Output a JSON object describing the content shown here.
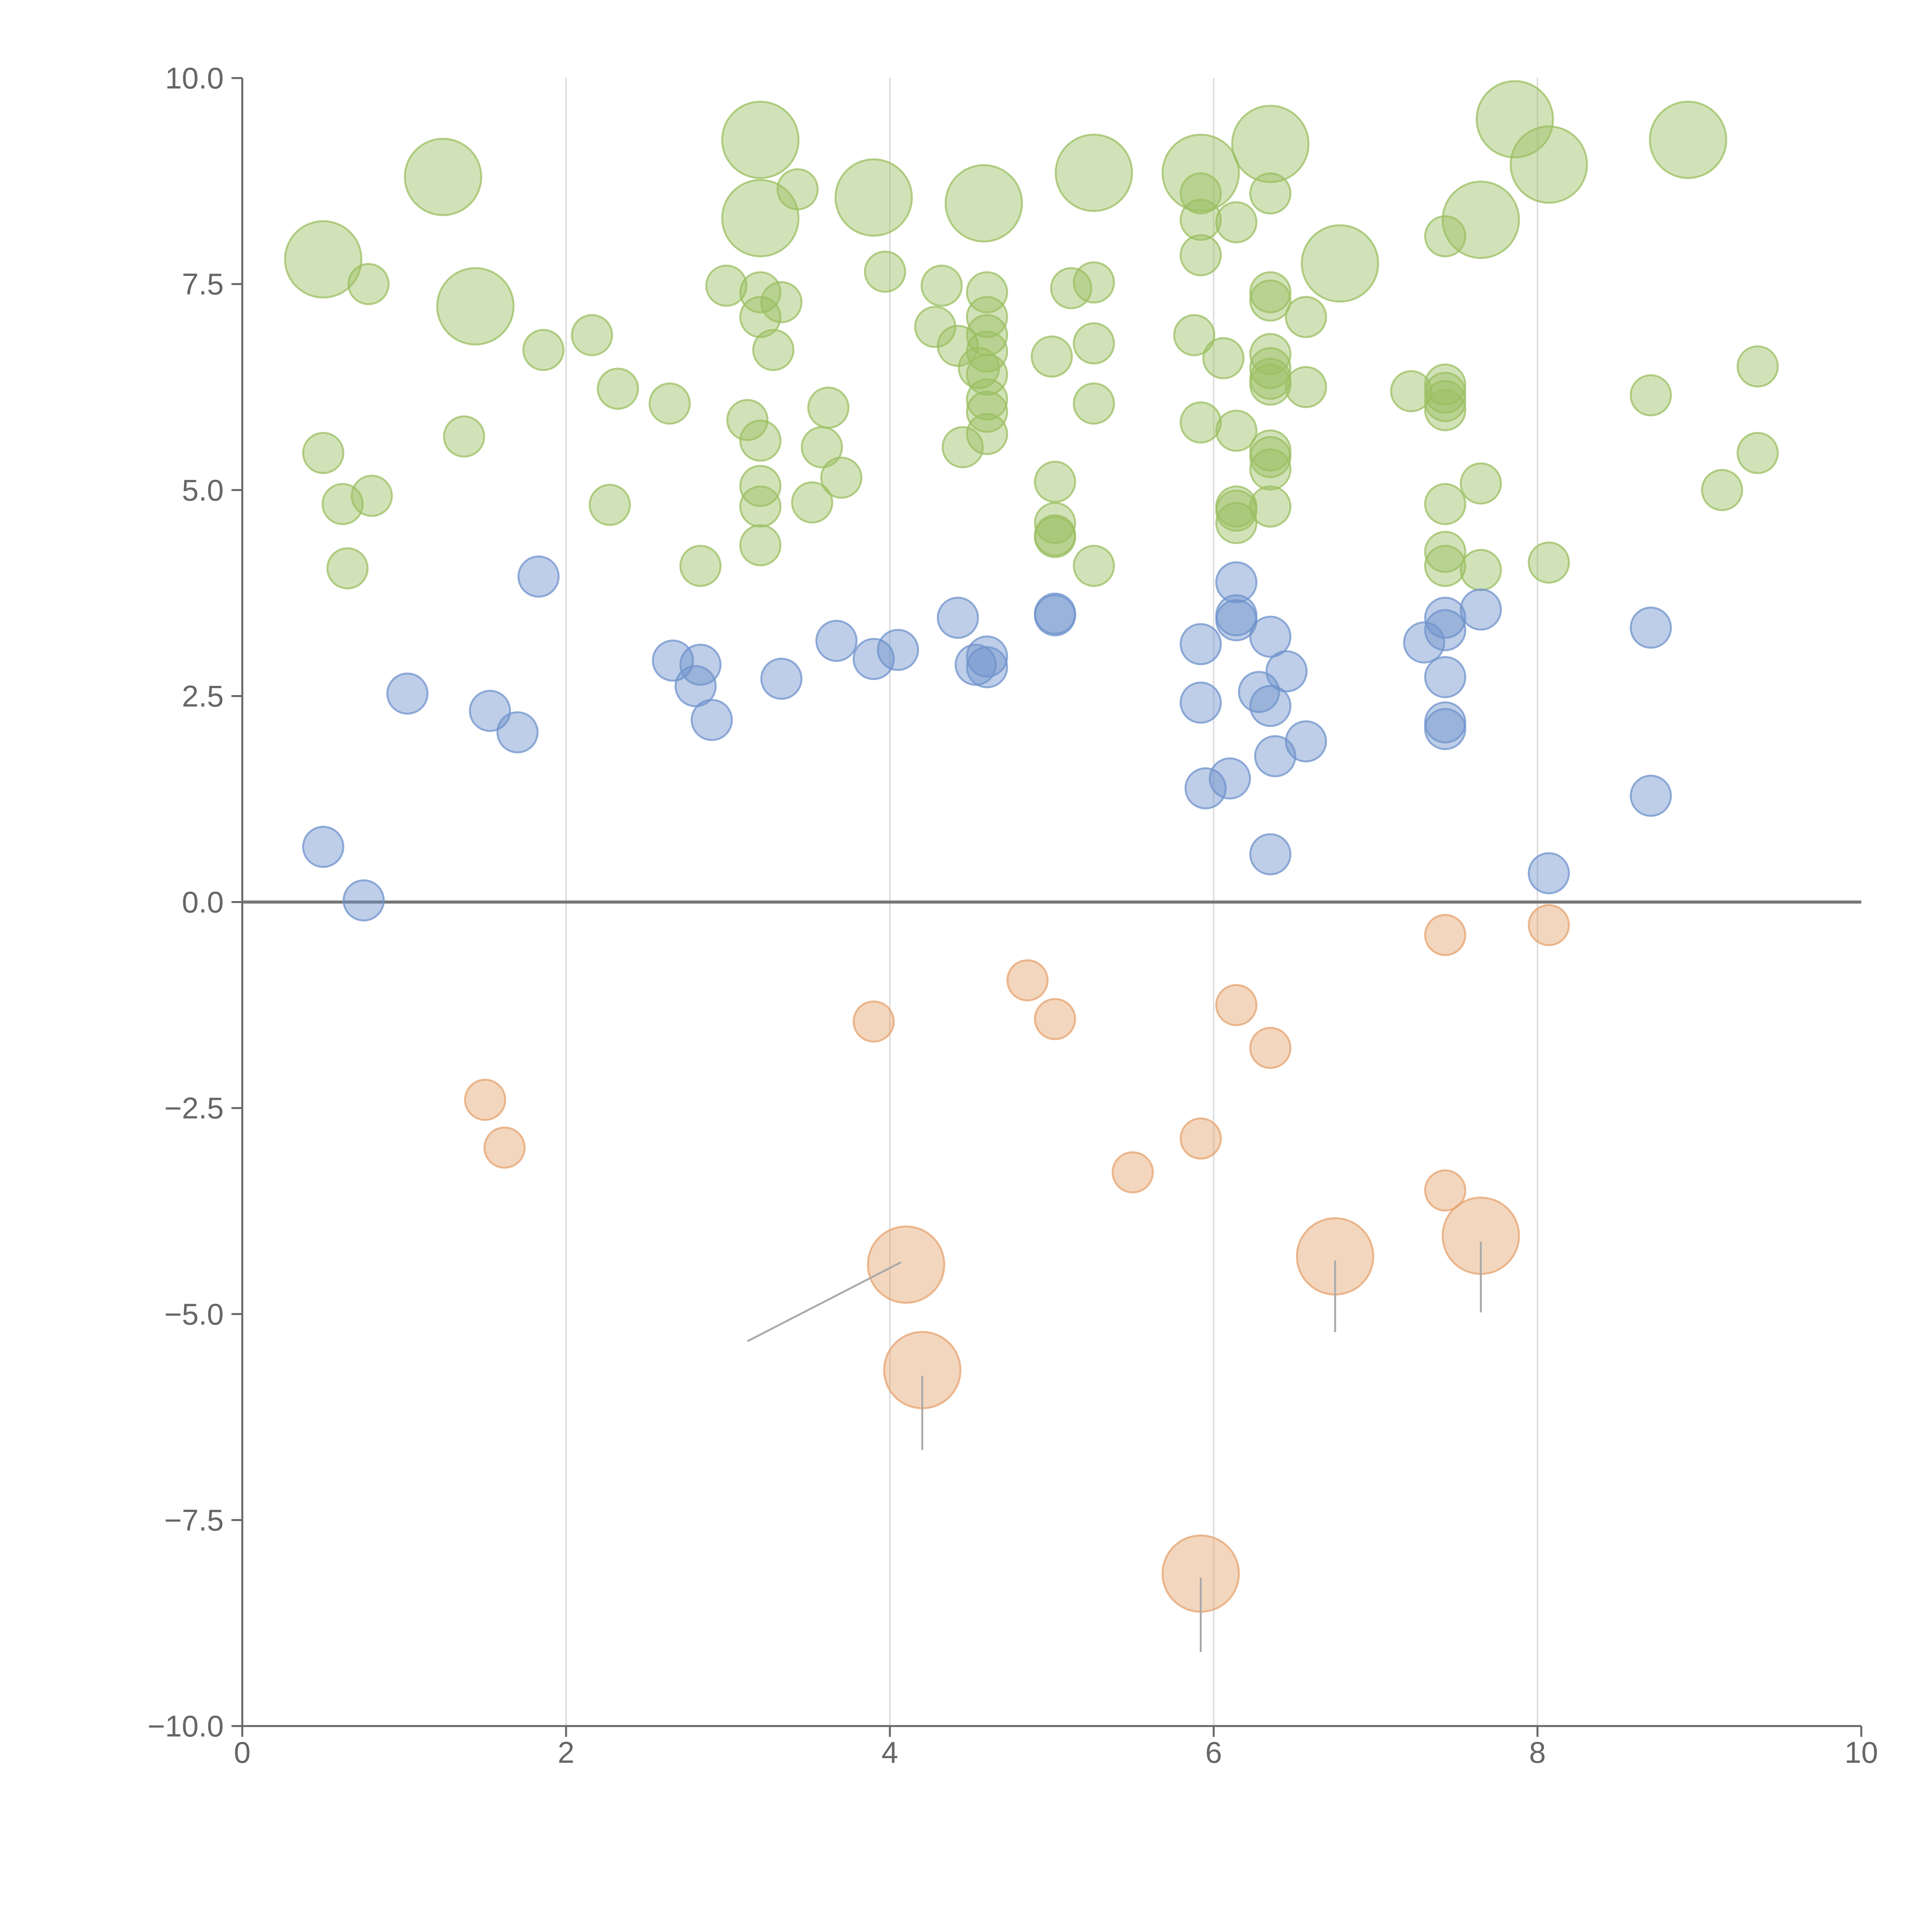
{
  "chart_data": {
    "type": "scatter",
    "title": "",
    "xlabel": "",
    "ylabel": "",
    "xlim": [
      0,
      10
    ],
    "ylim": [
      -10,
      10
    ],
    "x_ticks": [
      0,
      2,
      4,
      6,
      8,
      10
    ],
    "x_tick_labels": [
      "0",
      "2",
      "4",
      "6",
      "8",
      "10"
    ],
    "y_ticks": [
      10,
      7.5,
      5,
      2.5,
      0,
      -2.5,
      -5,
      -7.5,
      -10
    ],
    "y_tick_labels": [
      "10.0",
      "7.5",
      "5.0",
      "2.5",
      "0.0",
      "−2.5",
      "−5.0",
      "−7.5",
      "−10.0"
    ],
    "vertical_gridlines_at": [
      2,
      4,
      6,
      8
    ],
    "zero_line": 0,
    "colors": {
      "green": "#9bbf62",
      "blue": "#6f93cc",
      "orange": "#e5a36f",
      "axis": "#666666",
      "grid": "#dddddd",
      "zero_line": "#777777",
      "leader": "#aaaaaa"
    },
    "series": [
      {
        "name": "green",
        "color": "#9bbf62",
        "size_units": "relative radius (1 = small bubble)",
        "points": [
          [
            0.5,
            7.8,
            1.9
          ],
          [
            0.78,
            7.5,
            1
          ],
          [
            0.5,
            5.45,
            1
          ],
          [
            0.62,
            4.83,
            1
          ],
          [
            0.8,
            4.93,
            1
          ],
          [
            0.65,
            4.05,
            1
          ],
          [
            1.24,
            8.8,
            1.9
          ],
          [
            1.44,
            7.23,
            1.9
          ],
          [
            1.37,
            5.65,
            1
          ],
          [
            1.86,
            6.7,
            1
          ],
          [
            2.16,
            6.88,
            1
          ],
          [
            2.32,
            6.23,
            1
          ],
          [
            2.27,
            4.82,
            1
          ],
          [
            2.64,
            6.05,
            1
          ],
          [
            2.83,
            4.08,
            1
          ],
          [
            2.99,
            7.48,
            1
          ],
          [
            3.12,
            5.85,
            1
          ],
          [
            3.2,
            9.25,
            1.9
          ],
          [
            3.2,
            8.3,
            1.9
          ],
          [
            3.2,
            7.4,
            1
          ],
          [
            3.2,
            7.1,
            1
          ],
          [
            3.2,
            5.6,
            1
          ],
          [
            3.2,
            5.05,
            1
          ],
          [
            3.2,
            4.8,
            1
          ],
          [
            3.2,
            4.33,
            1
          ],
          [
            3.33,
            7.28,
            1
          ],
          [
            3.28,
            6.7,
            1
          ],
          [
            3.43,
            8.65,
            1
          ],
          [
            3.52,
            4.85,
            1
          ],
          [
            3.58,
            5.52,
            1
          ],
          [
            3.62,
            6.0,
            1
          ],
          [
            3.7,
            5.15,
            1
          ],
          [
            3.9,
            8.55,
            1.9
          ],
          [
            3.97,
            7.65,
            1
          ],
          [
            4.32,
            7.48,
            1
          ],
          [
            4.28,
            6.98,
            1
          ],
          [
            4.42,
            6.75,
            1
          ],
          [
            4.45,
            5.52,
            1
          ],
          [
            4.55,
            6.48,
            1
          ],
          [
            4.58,
            8.48,
            1.9
          ],
          [
            4.6,
            7.4,
            1
          ],
          [
            4.6,
            7.1,
            1
          ],
          [
            4.6,
            6.88,
            1
          ],
          [
            4.6,
            6.68,
            1
          ],
          [
            4.6,
            6.4,
            1
          ],
          [
            4.6,
            6.1,
            1
          ],
          [
            4.6,
            5.95,
            1
          ],
          [
            4.6,
            5.68,
            1
          ],
          [
            5.0,
            6.62,
            1
          ],
          [
            5.02,
            5.1,
            1
          ],
          [
            5.02,
            4.6,
            1
          ],
          [
            5.02,
            4.45,
            1
          ],
          [
            5.02,
            4.43,
            1
          ],
          [
            5.12,
            7.45,
            1
          ],
          [
            5.26,
            7.52,
            1
          ],
          [
            5.26,
            6.78,
            1
          ],
          [
            5.26,
            6.05,
            1
          ],
          [
            5.26,
            4.08,
            1
          ],
          [
            5.26,
            8.85,
            1.9
          ],
          [
            5.88,
            6.88,
            1
          ],
          [
            5.92,
            8.85,
            1.9
          ],
          [
            5.92,
            8.6,
            1
          ],
          [
            5.92,
            8.28,
            1
          ],
          [
            5.92,
            7.85,
            1
          ],
          [
            5.92,
            5.82,
            1
          ],
          [
            6.06,
            6.6,
            1
          ],
          [
            6.14,
            8.25,
            1
          ],
          [
            6.14,
            5.72,
            1
          ],
          [
            6.14,
            4.8,
            1
          ],
          [
            6.14,
            4.75,
            1
          ],
          [
            6.14,
            4.6,
            1
          ],
          [
            6.35,
            9.2,
            1.9
          ],
          [
            6.35,
            8.6,
            1
          ],
          [
            6.35,
            7.4,
            1
          ],
          [
            6.35,
            7.3,
            1
          ],
          [
            6.35,
            6.65,
            1
          ],
          [
            6.35,
            6.48,
            1
          ],
          [
            6.35,
            6.35,
            1
          ],
          [
            6.35,
            6.28,
            1
          ],
          [
            6.35,
            5.48,
            1
          ],
          [
            6.35,
            5.4,
            1
          ],
          [
            6.35,
            5.25,
            1
          ],
          [
            6.35,
            4.8,
            1
          ],
          [
            6.57,
            7.1,
            1
          ],
          [
            6.57,
            6.25,
            1
          ],
          [
            6.78,
            7.75,
            1.9
          ],
          [
            7.22,
            6.2,
            1
          ],
          [
            7.43,
            8.08,
            1
          ],
          [
            7.43,
            6.28,
            1
          ],
          [
            7.43,
            6.18,
            1
          ],
          [
            7.43,
            6.08,
            1
          ],
          [
            7.43,
            5.97,
            1
          ],
          [
            7.43,
            4.83,
            1
          ],
          [
            7.43,
            4.25,
            1
          ],
          [
            7.43,
            4.08,
            1
          ],
          [
            7.65,
            8.28,
            1.9
          ],
          [
            7.65,
            5.08,
            1
          ],
          [
            7.65,
            4.03,
            1
          ],
          [
            7.86,
            9.5,
            1.9
          ],
          [
            8.07,
            8.95,
            1.9
          ],
          [
            8.07,
            4.12,
            1
          ],
          [
            8.7,
            6.15,
            1
          ],
          [
            8.93,
            9.25,
            1.9
          ],
          [
            9.14,
            5.0,
            1
          ],
          [
            9.36,
            6.5,
            1
          ],
          [
            9.36,
            5.45,
            1
          ]
        ]
      },
      {
        "name": "blue",
        "color": "#6f93cc",
        "size_units": "relative radius (1 = small bubble)",
        "points": [
          [
            0.5,
            0.67,
            1
          ],
          [
            0.75,
            0.02,
            1
          ],
          [
            1.02,
            2.53,
            1
          ],
          [
            1.53,
            2.32,
            1
          ],
          [
            1.7,
            2.06,
            1
          ],
          [
            1.83,
            3.95,
            1
          ],
          [
            2.66,
            2.93,
            1
          ],
          [
            2.8,
            2.62,
            1
          ],
          [
            2.83,
            2.88,
            1
          ],
          [
            2.9,
            2.21,
            1
          ],
          [
            3.33,
            2.71,
            1
          ],
          [
            3.67,
            3.17,
            1
          ],
          [
            3.9,
            2.95,
            1
          ],
          [
            4.05,
            3.06,
            1
          ],
          [
            4.42,
            3.45,
            1
          ],
          [
            4.53,
            2.88,
            1
          ],
          [
            4.6,
            2.98,
            1
          ],
          [
            4.6,
            2.85,
            1
          ],
          [
            5.02,
            3.5,
            1
          ],
          [
            5.02,
            3.48,
            1
          ],
          [
            5.92,
            3.13,
            1
          ],
          [
            5.92,
            2.42,
            1
          ],
          [
            5.95,
            1.38,
            1
          ],
          [
            6.1,
            1.5,
            1
          ],
          [
            6.14,
            3.88,
            1
          ],
          [
            6.14,
            3.48,
            1
          ],
          [
            6.14,
            3.42,
            1
          ],
          [
            6.28,
            2.55,
            1
          ],
          [
            6.35,
            3.22,
            1
          ],
          [
            6.35,
            2.38,
            1
          ],
          [
            6.38,
            1.77,
            1
          ],
          [
            6.35,
            0.58,
            1
          ],
          [
            6.45,
            2.8,
            1
          ],
          [
            6.57,
            1.95,
            1
          ],
          [
            7.3,
            3.15,
            1
          ],
          [
            7.43,
            3.45,
            1
          ],
          [
            7.43,
            3.3,
            1
          ],
          [
            7.43,
            2.73,
            1
          ],
          [
            7.43,
            2.18,
            1
          ],
          [
            7.43,
            2.1,
            1
          ],
          [
            7.65,
            3.55,
            1
          ],
          [
            8.07,
            0.35,
            1
          ],
          [
            8.7,
            3.33,
            1
          ],
          [
            8.7,
            1.29,
            1
          ]
        ]
      },
      {
        "name": "orange",
        "color": "#e5a36f",
        "size_units": "relative radius (1 = small bubble)",
        "points": [
          [
            1.5,
            -2.4,
            1
          ],
          [
            1.62,
            -2.98,
            1
          ],
          [
            3.9,
            -1.45,
            1
          ],
          [
            4.1,
            -4.4,
            1.9
          ],
          [
            4.2,
            -5.68,
            1.9
          ],
          [
            4.85,
            -0.95,
            1
          ],
          [
            5.02,
            -1.42,
            1
          ],
          [
            5.5,
            -3.28,
            1
          ],
          [
            5.92,
            -2.87,
            1
          ],
          [
            5.92,
            -8.15,
            1.9
          ],
          [
            6.14,
            -1.25,
            1
          ],
          [
            6.35,
            -1.77,
            1
          ],
          [
            6.75,
            -4.3,
            1.9
          ],
          [
            7.43,
            -0.4,
            1
          ],
          [
            7.43,
            -3.5,
            1
          ],
          [
            7.65,
            -4.05,
            1.9
          ],
          [
            8.07,
            -0.28,
            1
          ]
        ]
      }
    ],
    "leader_lines": [
      [
        [
          4.07,
          -4.37
        ],
        [
          3.12,
          -5.33
        ]
      ],
      [
        [
          4.2,
          -5.75
        ],
        [
          4.2,
          -6.65
        ]
      ],
      [
        [
          5.92,
          -8.2
        ],
        [
          5.92,
          -9.1
        ]
      ],
      [
        [
          6.75,
          -4.35
        ],
        [
          6.75,
          -5.22
        ]
      ],
      [
        [
          7.65,
          -4.12
        ],
        [
          7.65,
          -4.98
        ]
      ]
    ]
  }
}
